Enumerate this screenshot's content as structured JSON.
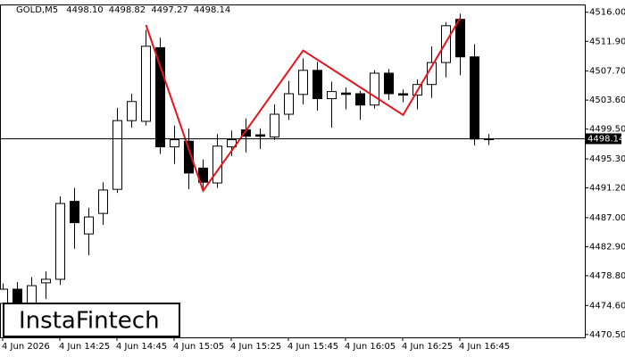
{
  "chart_data": {
    "type": "candlestick",
    "symbol": "GOLD,M5",
    "last_bar": {
      "open": {
        "value": 4498.1,
        "label": "4498.10"
      },
      "high": 4498.82,
      "low": 4497.27,
      "close": 4498.14
    },
    "categories": [
      "4 Jun 2026",
      null,
      null,
      null,
      "4 Jun 14:25",
      null,
      null,
      null,
      "4 Jun 14:45",
      null,
      null,
      null,
      "4 Jun 15:05",
      null,
      null,
      null,
      "4 Jun 15:25",
      null,
      null,
      null,
      "4 Jun 15:45",
      null,
      null,
      null,
      "4 Jun 16:05",
      null,
      null,
      null,
      "4 Jun 16:25",
      null,
      null,
      null,
      "4 Jun 16:45",
      null,
      null
    ],
    "open": [
      4474.9,
      4476.9,
      4474.9,
      4477.8,
      4478.3,
      4489.3,
      4484.7,
      4487.6,
      4491.0,
      4500.7,
      4500.6,
      4511.0,
      4497.0,
      4497.8,
      4494.0,
      4491.9,
      4497.0,
      4499.4,
      4498.7,
      4498.4,
      4501.6,
      4504.4,
      4507.8,
      4503.8,
      4504.6,
      4504.5,
      4502.9,
      4507.4,
      4504.5,
      4504.3,
      4505.8,
      4508.9,
      4515.0,
      4509.7,
      4498.1
    ],
    "high": [
      4477.7,
      4477.9,
      4478.6,
      4479.4,
      4490.0,
      4491.2,
      4488.4,
      4492.0,
      4502.5,
      4504.5,
      4513.5,
      4512.4,
      4500.0,
      4499.6,
      4495.2,
      4498.8,
      4499.3,
      4501.0,
      4499.6,
      4503.0,
      4506.3,
      4509.5,
      4509.0,
      4506.2,
      4505.4,
      4504.9,
      4507.8,
      4508.0,
      4505.1,
      4506.5,
      4511.2,
      4514.6,
      4515.8,
      4511.5,
      4498.82
    ],
    "low": [
      4474.3,
      4474.0,
      4474.5,
      4475.5,
      4477.5,
      4482.6,
      4481.7,
      4486.0,
      4490.5,
      4499.7,
      4500.0,
      4496.0,
      4494.6,
      4491.0,
      4490.8,
      4491.2,
      4495.7,
      4496.2,
      4496.7,
      4498.0,
      4500.8,
      4503.0,
      4502.1,
      4499.7,
      4502.3,
      4500.8,
      4502.4,
      4503.6,
      4503.3,
      4502.3,
      4503.9,
      4506.8,
      4507.1,
      4497.2,
      4497.27
    ],
    "close": [
      4476.9,
      4474.9,
      4477.4,
      4478.3,
      4489.0,
      4486.3,
      4487.1,
      4490.9,
      4500.7,
      4503.4,
      4511.2,
      4497.0,
      4498.0,
      4493.3,
      4492.0,
      4497.1,
      4498.0,
      4498.5,
      4498.5,
      4501.6,
      4504.5,
      4507.8,
      4503.8,
      4504.8,
      4504.4,
      4502.9,
      4507.4,
      4504.5,
      4504.3,
      4505.8,
      4508.9,
      4514.1,
      4509.7,
      4498.1,
      4498.14
    ],
    "pattern": {
      "color": "#e8141c",
      "x": [
        10,
        14,
        21,
        28,
        32
      ],
      "values": [
        4514.2,
        4490.8,
        4510.6,
        4501.5,
        4515.2
      ]
    },
    "ylim": [
      4470.1,
      4517.1
    ],
    "yticks": [
      {
        "value": 4470.5,
        "label": "4470.50"
      },
      {
        "value": 4474.6,
        "label": "4474.60"
      },
      {
        "value": 4478.8,
        "label": "4478.80"
      },
      {
        "value": 4482.9,
        "label": "4482.90"
      },
      {
        "value": 4487,
        "label": "4487.00"
      },
      {
        "value": 4491.2,
        "label": "4491.20"
      },
      {
        "value": 4495.3,
        "label": "4495.30"
      },
      {
        "value": 4499.5,
        "label": "4499.50"
      },
      {
        "value": 4503.6,
        "label": "4503.60"
      },
      {
        "value": 4507.7,
        "label": "4507.70"
      },
      {
        "value": 4511.9,
        "label": "4511.90"
      },
      {
        "value": 4516,
        "label": "4516.00"
      }
    ],
    "logo": "InstaFintech"
  }
}
